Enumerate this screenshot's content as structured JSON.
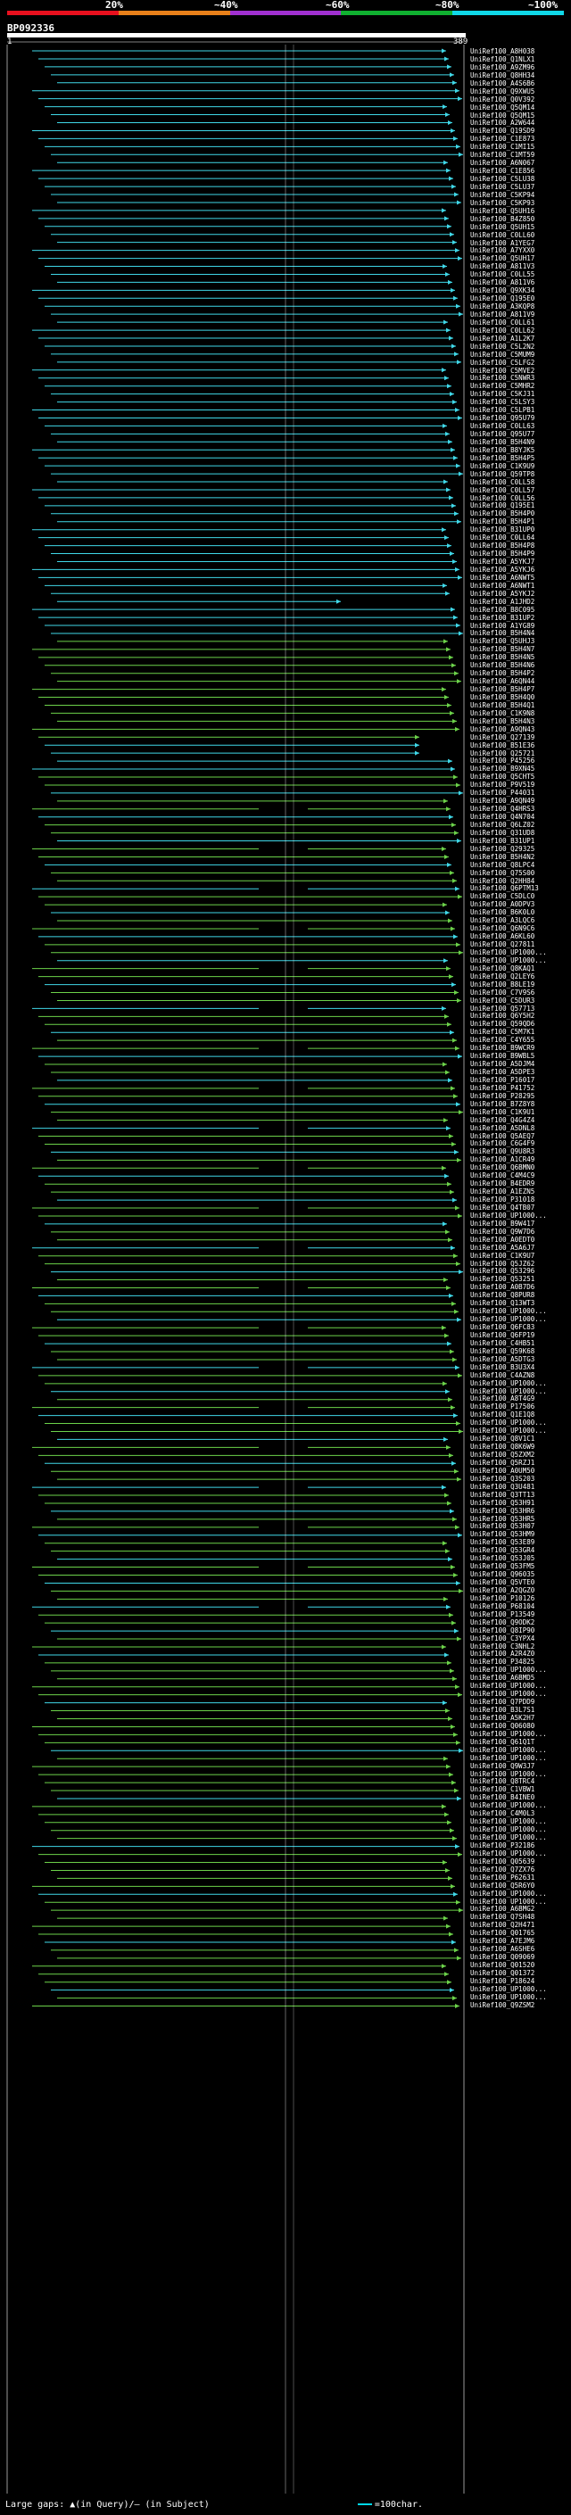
{
  "legend": {
    "labels": [
      "20%",
      "~40%",
      "~60%",
      "~80%",
      "~100%"
    ],
    "colors": [
      "#e8101e",
      "#e8801a",
      "#a030d0",
      "#10b030",
      "#10d8e8"
    ]
  },
  "query": {
    "name": "BP092336",
    "start": "1",
    "end": "389"
  },
  "colors": {
    "green_hit": "#6cd24a",
    "cyan_hit": "#40d8e8",
    "axis": "#ffffff"
  },
  "hits": [
    "UniRef100_A8H038",
    "UniRef100_Q1NLX1",
    "UniRef100_A9ZM96",
    "UniRef100_Q8HH34",
    "UniRef100_A4S6B6",
    "UniRef100_Q9XWU5",
    "UniRef100_Q0V392",
    "UniRef100_Q5QM14",
    "UniRef100_Q5QM15",
    "UniRef100_A2W644",
    "UniRef100_Q19SD9",
    "UniRef100_C1E873",
    "UniRef100_C1MI15",
    "UniRef100_C1MT59",
    "UniRef100_A6N067",
    "UniRef100_C1E856",
    "UniRef100_C5LU38",
    "UniRef100_C5LU37",
    "UniRef100_C5KP94",
    "UniRef100_C5KP93",
    "UniRef100_Q5UH16",
    "UniRef100_B4Z850",
    "UniRef100_Q5UH15",
    "UniRef100_C0LL60",
    "UniRef100_A1YEG7",
    "UniRef100_A7YXX0",
    "UniRef100_Q5UH17",
    "UniRef100_A811V3",
    "UniRef100_C0LL55",
    "UniRef100_A811V6",
    "UniRef100_Q9XK34",
    "UniRef100_Q195E0",
    "UniRef100_A3KQP8",
    "UniRef100_A811V9",
    "UniRef100_C0LL61",
    "UniRef100_C0LL62",
    "UniRef100_A1L2K7",
    "UniRef100_C5L2N2",
    "UniRef100_C5MUM9",
    "UniRef100_C5LFG2",
    "UniRef100_C5MVE2",
    "UniRef100_C5NWR3",
    "UniRef100_C5MHR2",
    "UniRef100_C5KJ31",
    "UniRef100_C5LSY3",
    "UniRef100_C5LPB1",
    "UniRef100_Q95U79",
    "UniRef100_C0LL63",
    "UniRef100_Q95U77",
    "UniRef100_B5H4N9",
    "UniRef100_B8YJK5",
    "UniRef100_B5H4P5",
    "UniRef100_C1K9U9",
    "UniRef100_Q59TP8",
    "UniRef100_C0LL58",
    "UniRef100_C0LL57",
    "UniRef100_C0LL56",
    "UniRef100_Q195E1",
    "UniRef100_B5H4P0",
    "UniRef100_B5H4P1",
    "UniRef100_B31UP0",
    "UniRef100_C0LL64",
    "UniRef100_B5H4P8",
    "UniRef100_B5H4P9",
    "UniRef100_A5YKJ7",
    "UniRef100_A5YKJ6",
    "UniRef100_A6NWT5",
    "UniRef100_A6NWT1",
    "UniRef100_A5YKJ2",
    "UniRef100_A1JHD2",
    "UniRef100_B8C095",
    "UniRef100_B31UP2",
    "UniRef100_A1YG89",
    "UniRef100_B5H4N4",
    "UniRef100_Q5UHJ3",
    "UniRef100_B5H4N7",
    "UniRef100_B5H4N5",
    "UniRef100_B5H4N6",
    "UniRef100_B5H4P2",
    "UniRef100_A6QN44",
    "UniRef100_B5H4P7",
    "UniRef100_B5H4Q0",
    "UniRef100_B5H4Q1",
    "UniRef100_C1K9N8",
    "UniRef100_B5H4N3",
    "UniRef100_A9QN43",
    "UniRef100_Q27139",
    "UniRef100_B51E36",
    "UniRef100_Q25721",
    "UniRef100_P45256",
    "UniRef100_B9XN45",
    "UniRef100_Q5CHT5",
    "UniRef100_P9V519",
    "UniRef100_P44031",
    "UniRef100_A9QN49",
    "UniRef100_Q4HRS3",
    "UniRef100_Q4N704",
    "UniRef100_Q6LZ02",
    "UniRef100_Q31UD8",
    "UniRef100_B31UP1",
    "UniRef100_Q29325",
    "UniRef100_B5H4N2",
    "UniRef100_Q8LPC4",
    "UniRef100_Q75S00",
    "UniRef100_Q2HH84",
    "UniRef100_Q6PTM13",
    "UniRef100_C5DLC0",
    "UniRef100_A0DPV3",
    "UniRef100_B6K0L0",
    "UniRef100_A3LQC6",
    "UniRef100_Q6N9C6",
    "UniRef100_A6KL60",
    "UniRef100_Q27811",
    "UniRef100_UP1000...",
    "UniRef100_UP1000...",
    "UniRef100_Q8KAQ1",
    "UniRef100_Q2LEY6",
    "UniRef100_B8LE19",
    "UniRef100_C7V9S6",
    "UniRef100_C5DUR3",
    "UniRef100_Q57713",
    "UniRef100_Q6Y5H2",
    "UniRef100_Q59QD6",
    "UniRef100_C5M7K1",
    "UniRef100_C4Y655",
    "UniRef100_B9WCR9",
    "UniRef100_B9WBL5",
    "UniRef100_A5DJM4",
    "UniRef100_A5DPE3",
    "UniRef100_P16017",
    "UniRef100_P41752",
    "UniRef100_P28295",
    "UniRef100_B7Z8Y8",
    "UniRef100_C1K9U1",
    "UniRef100_Q4G4Z4",
    "UniRef100_A5DNL8",
    "UniRef100_Q5AEQ7",
    "UniRef100_C6G4F9",
    "UniRef100_Q9U8R3",
    "UniRef100_A1CR49",
    "UniRef100_Q6BMN0",
    "UniRef100_C4M4C9",
    "UniRef100_B4EDR9",
    "UniRef100_A1EZN5",
    "UniRef100_P31018",
    "UniRef100_Q4TB07",
    "UniRef100_UP1000...",
    "UniRef100_B9W417",
    "UniRef100_Q9W7D6",
    "UniRef100_A0EDT0",
    "UniRef100_A5A6J7",
    "UniRef100_C1K9U7",
    "UniRef100_Q5JZ62",
    "UniRef100_Q53296",
    "UniRef100_Q53251",
    "UniRef100_A0B7D6",
    "UniRef100_Q8PUR8",
    "UniRef100_Q13WT3",
    "UniRef100_UP1000...",
    "UniRef100_UP1000...",
    "UniRef100_Q6FC83",
    "UniRef100_Q6FP19",
    "UniRef100_C4HB51",
    "UniRef100_Q59K68",
    "UniRef100_A5DTG3",
    "UniRef100_B3U3X4",
    "UniRef100_C4AZN8",
    "UniRef100_UP1000...",
    "UniRef100_UP1000...",
    "UniRef100_A8T4G9",
    "UniRef100_P17506",
    "UniRef100_Q1E1Q8",
    "UniRef100_UP1000...",
    "UniRef100_UP1000...",
    "UniRef100_Q8V1C1",
    "UniRef100_Q8K6W9",
    "UniRef100_Q5ZXM2",
    "UniRef100_Q5RZJ1",
    "UniRef100_A0UM50",
    "UniRef100_Q3S203",
    "UniRef100_Q3U481",
    "UniRef100_Q3TT13",
    "UniRef100_Q53H91",
    "UniRef100_Q53HR6",
    "UniRef100_Q53HR5",
    "UniRef100_Q53H07",
    "UniRef100_Q53HM9",
    "UniRef100_Q53E89",
    "UniRef100_Q53GR4",
    "UniRef100_Q53J05",
    "UniRef100_Q53FM5",
    "UniRef100_Q96035",
    "UniRef100_Q5VTE0",
    "UniRef100_A2QGZ0",
    "UniRef100_P10126",
    "UniRef100_P68104",
    "UniRef100_P13549",
    "UniRef100_Q9ODK2",
    "UniRef100_Q8IP90",
    "UniRef100_C3YPX4",
    "UniRef100_C3NHL2",
    "UniRef100_A2R4Z0",
    "UniRef100_P34825",
    "UniRef100_UP1000...",
    "UniRef100_A6BMD5",
    "UniRef100_UP1000...",
    "UniRef100_UP1000...",
    "UniRef100_Q7PDD9",
    "UniRef100_B3L7S1",
    "UniRef100_A5K2H7",
    "UniRef100_Q06080",
    "UniRef100_UP1000...",
    "UniRef100_Q61Q1T",
    "UniRef100_UP1000...",
    "UniRef100_UP1000...",
    "UniRef100_Q9W3J7",
    "UniRef100_UP1000...",
    "UniRef100_Q8TRC4",
    "UniRef100_C1VBW1",
    "UniRef100_B4INE0",
    "UniRef100_UP1000...",
    "UniRef100_C4M0L3",
    "UniRef100_UP1000...",
    "UniRef100_UP1000...",
    "UniRef100_UP1000...",
    "UniRef100_P32186",
    "UniRef100_UP1000...",
    "UniRef100_Q05639",
    "UniRef100_Q7ZX76",
    "UniRef100_P62631",
    "UniRef100_Q5R6Y0",
    "UniRef100_UP1000...",
    "UniRef100_UP1000...",
    "UniRef100_A6BMG2",
    "UniRef100_Q7SH48",
    "UniRef100_Q2H471",
    "UniRef100_Q01765",
    "UniRef100_A7EJM6",
    "UniRef100_A6SHE6",
    "UniRef100_Q09069",
    "UniRef100_Q01520",
    "UniRef100_Q01372",
    "UniRef100_P18624",
    "UniRef100_UP1000...",
    "UniRef100_UP1000...",
    "UniRef100_Q9ZSM2"
  ],
  "footer": {
    "gaps_text": "Large gaps: ▲(in Query)/– (in Subject)",
    "scale_text": "=100char."
  }
}
